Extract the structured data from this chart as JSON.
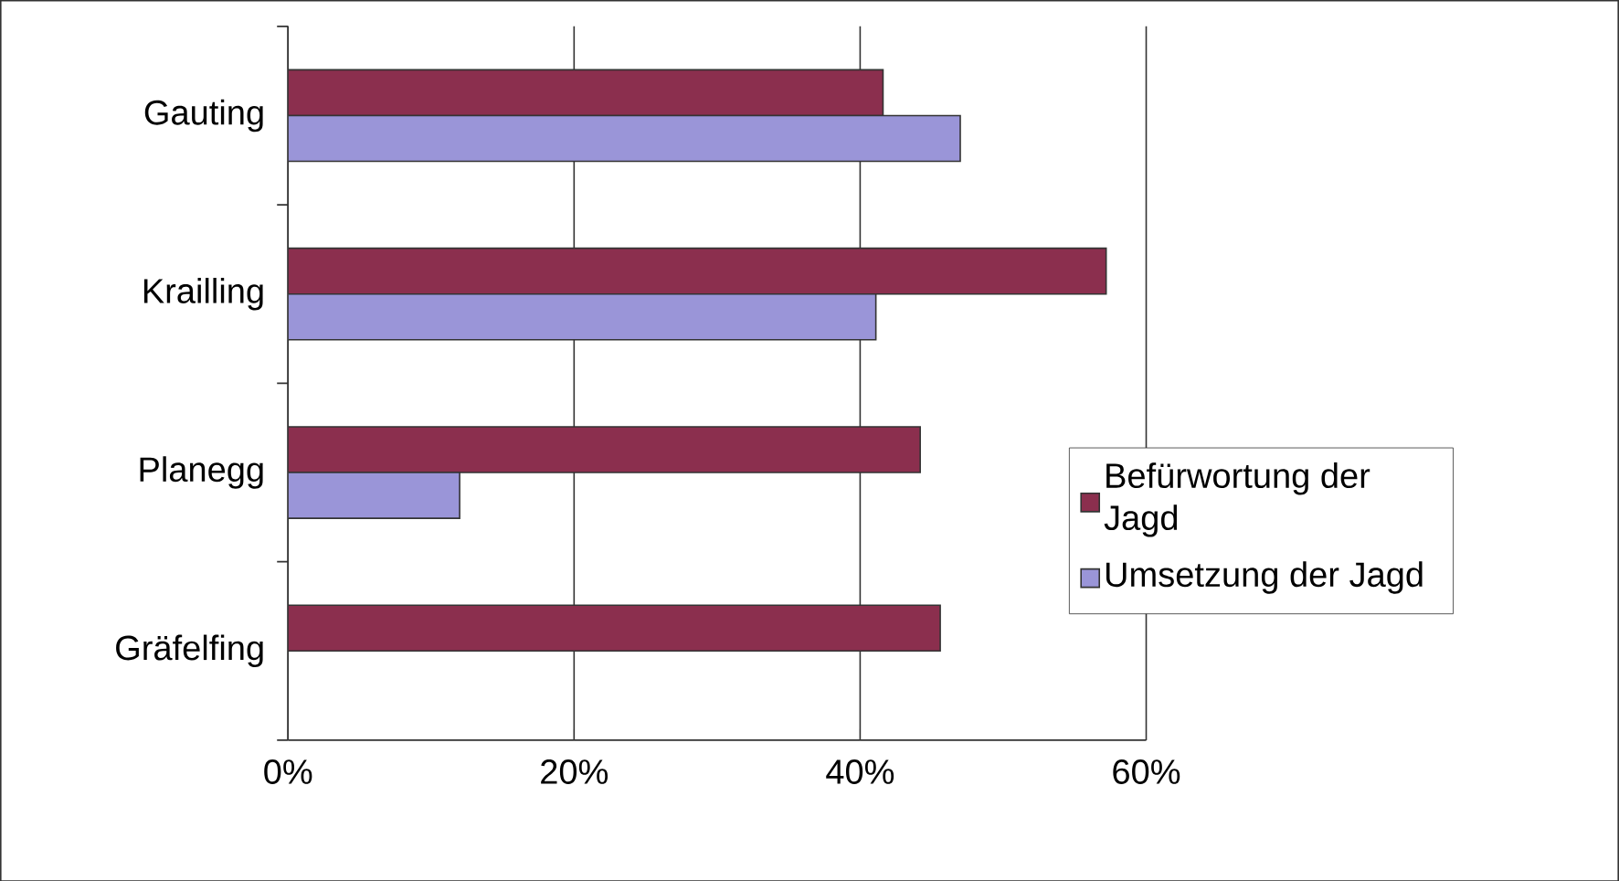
{
  "chart_data": {
    "type": "bar",
    "orientation": "horizontal",
    "categories": [
      "Gauting",
      "Krailling",
      "Planegg",
      "Gräfelfing"
    ],
    "series": [
      {
        "name": "Befürwortung der Jagd",
        "color": "#8b2f4e",
        "values": [
          41.6,
          57.2,
          44.2,
          45.6
        ]
      },
      {
        "name": "Umsetzung der Jagd",
        "color": "#9a95d8",
        "values": [
          47.0,
          41.1,
          12.0,
          null
        ]
      }
    ],
    "xlim": [
      0,
      60
    ],
    "xticks": [
      {
        "value": 0,
        "label": "0%"
      },
      {
        "value": 20,
        "label": "20%"
      },
      {
        "value": 40,
        "label": "40%"
      },
      {
        "value": 60,
        "label": "60%"
      }
    ],
    "grid": "x",
    "legend": "right"
  }
}
